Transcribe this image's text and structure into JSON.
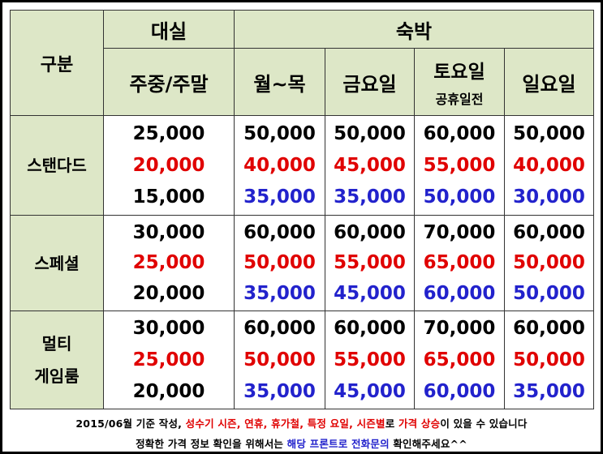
{
  "headers": {
    "category": "구분",
    "daesil": "대실",
    "sukbak": "숙박",
    "weekday_weekend": "주중/주말",
    "mon_thu": "월~목",
    "friday": "금요일",
    "saturday": "토요일",
    "saturday_sub": "공휴일전",
    "sunday": "일요일"
  },
  "rows": [
    {
      "name_line1": "스탠다드",
      "name_line2": "",
      "daesil": [
        "25,000",
        "20,000",
        "15,000"
      ],
      "mon_thu": [
        "50,000",
        "40,000",
        "35,000"
      ],
      "friday": [
        "50,000",
        "45,000",
        "35,000"
      ],
      "saturday": [
        "60,000",
        "55,000",
        "50,000"
      ],
      "sunday": [
        "50,000",
        "40,000",
        "30,000"
      ]
    },
    {
      "name_line1": "스페셜",
      "name_line2": "",
      "daesil": [
        "30,000",
        "25,000",
        "20,000"
      ],
      "mon_thu": [
        "60,000",
        "50,000",
        "35,000"
      ],
      "friday": [
        "60,000",
        "55,000",
        "45,000"
      ],
      "saturday": [
        "70,000",
        "65,000",
        "60,000"
      ],
      "sunday": [
        "60,000",
        "50,000",
        "50,000"
      ]
    },
    {
      "name_line1": "멀티",
      "name_line2": "게임룸",
      "daesil": [
        "30,000",
        "25,000",
        "20,000"
      ],
      "mon_thu": [
        "60,000",
        "50,000",
        "35,000"
      ],
      "friday": [
        "60,000",
        "55,000",
        "45,000"
      ],
      "saturday": [
        "70,000",
        "65,000",
        "60,000"
      ],
      "sunday": [
        "60,000",
        "50,000",
        "35,000"
      ]
    }
  ],
  "colors": {
    "header_bg": "#dde7c7",
    "line1": "#000000",
    "line2": "#e00000",
    "line3": "#2222cc"
  },
  "footer": {
    "line1": [
      {
        "text": "2015/06월 기준 작성, ",
        "color": "#000000"
      },
      {
        "text": "성수기 시즌, 연휴, 휴가철, 특정 요일, 시즌별",
        "color": "#e00000"
      },
      {
        "text": "로 ",
        "color": "#000000"
      },
      {
        "text": "가격 상승",
        "color": "#e00000"
      },
      {
        "text": "이 있을 수 있습니다",
        "color": "#000000"
      }
    ],
    "line2": [
      {
        "text": "정확한 가격 정보 확인을 위해서는 ",
        "color": "#000000"
      },
      {
        "text": "해당 프론트로 전화문의",
        "color": "#2222cc"
      },
      {
        "text": " 확인해주세요^^",
        "color": "#000000"
      }
    ]
  }
}
